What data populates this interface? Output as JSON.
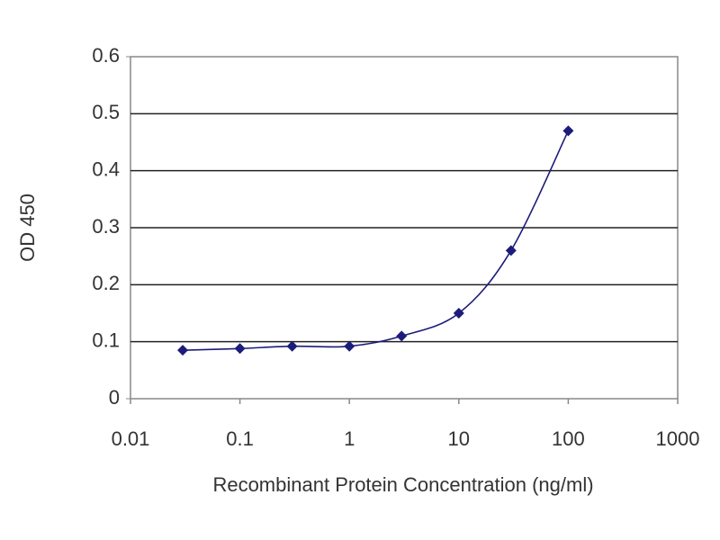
{
  "chart_data": {
    "type": "line",
    "xlabel": "Recombinant Protein Concentration (ng/ml)",
    "ylabel": "OD 450",
    "x": [
      0.03,
      0.1,
      0.3,
      1,
      3,
      10,
      30,
      100
    ],
    "series": [
      {
        "color": "#1c1c7a",
        "values": [
          0.085,
          0.088,
          0.092,
          0.092,
          0.11,
          0.15,
          0.26,
          0.47
        ]
      }
    ],
    "xlim": [
      0.01,
      1000
    ],
    "xticks": [
      0.01,
      0.1,
      1,
      10,
      100,
      1000
    ],
    "xlog": true,
    "ylim": [
      0,
      0.6
    ],
    "yticks": [
      0,
      0.1,
      0.2,
      0.3,
      0.4,
      0.5,
      0.6
    ],
    "grid": true,
    "smooth": true
  }
}
